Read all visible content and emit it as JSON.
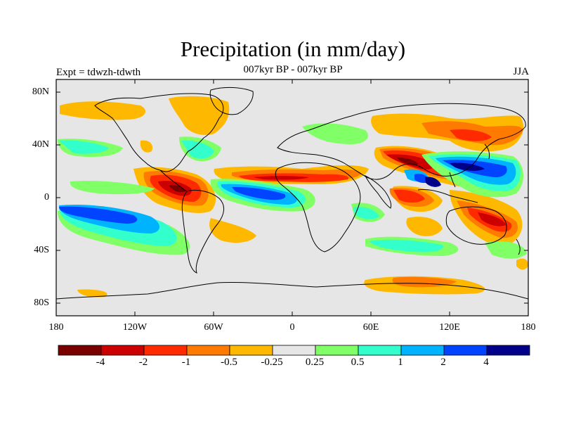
{
  "title": "Precipitation (in mm/day)",
  "subtitle": "007kyr BP - 007kyr BP",
  "left_label": "Expt = tdwzh-tdwth",
  "right_label": "JJA",
  "map": {
    "y_ticks": [
      "80N",
      "40N",
      "0",
      "40S",
      "80S"
    ],
    "x_ticks": [
      "180",
      "120W",
      "60W",
      "0",
      "60E",
      "120E",
      "180"
    ],
    "background_color": "#e6e6e6",
    "coastline_color": "#000000"
  },
  "colorbar": {
    "colors": [
      "#7a0000",
      "#cc0000",
      "#ff2a00",
      "#ff7a00",
      "#ffb800",
      "#e6e6e6",
      "#80ff66",
      "#33ffcc",
      "#00b3ff",
      "#0044ff",
      "#00008b"
    ],
    "labels": [
      "-4",
      "-2",
      "-1",
      "-0.5",
      "-0.25",
      "0.25",
      "0.5",
      "1",
      "2",
      "4"
    ]
  },
  "chart_data": {
    "type": "map",
    "variable": "Precipitation",
    "units": "mm/day",
    "season": "JJA",
    "contour_levels": [
      -4,
      -2,
      -1,
      -0.5,
      -0.25,
      0.25,
      0.5,
      1,
      2,
      4
    ],
    "lon_range": [
      -180,
      180
    ],
    "lat_range": [
      -90,
      90
    ]
  }
}
